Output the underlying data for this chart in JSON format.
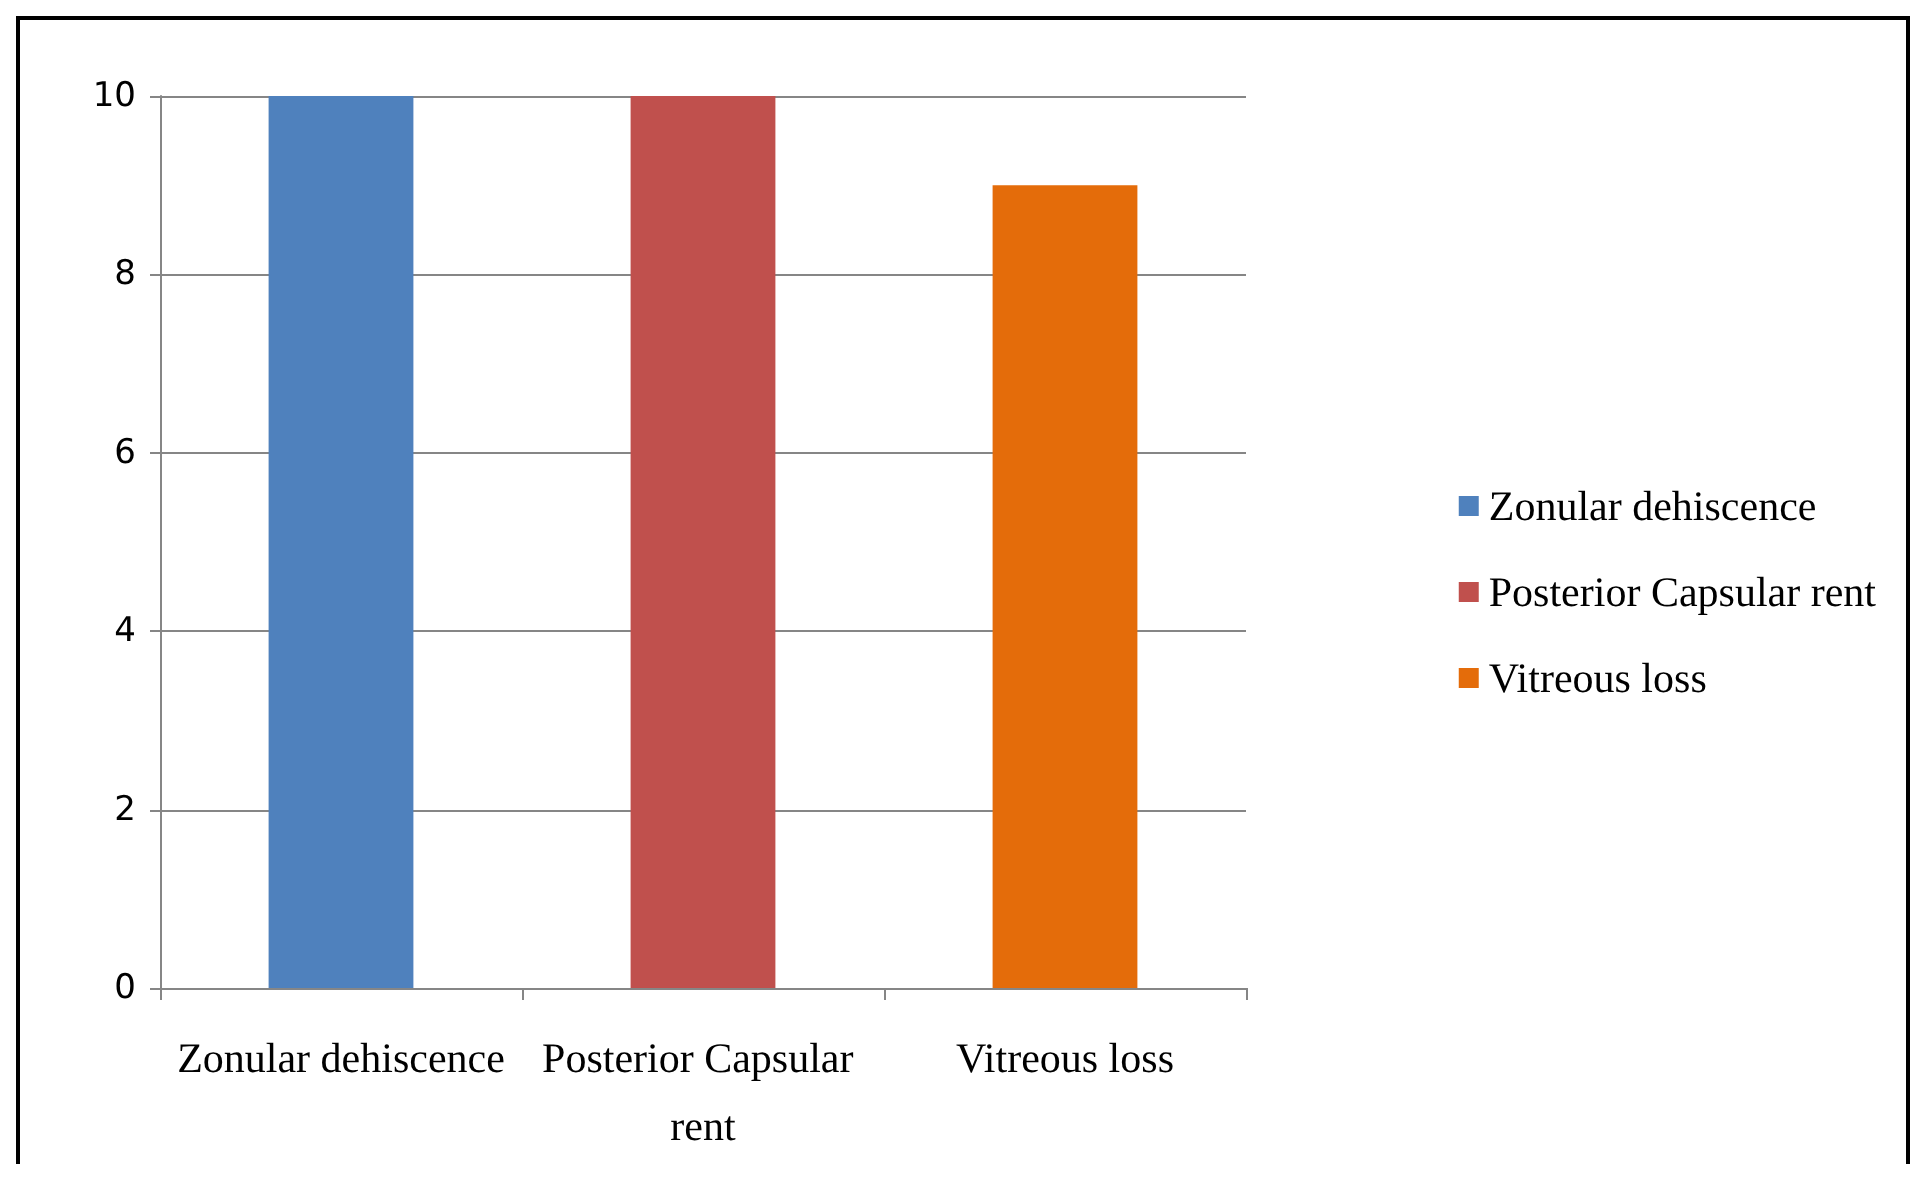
{
  "chart_data": {
    "type": "bar",
    "categories": [
      "Zonular dehiscence",
      "Posterior Capsular rent",
      "Vitreous loss"
    ],
    "series": [
      {
        "name": "Zonular dehiscence",
        "color": "#4f81bd",
        "values": [
          10,
          null,
          null
        ]
      },
      {
        "name": "Posterior Capsular rent",
        "color": "#c0504d",
        "values": [
          null,
          10,
          null
        ]
      },
      {
        "name": "Vitreous loss",
        "color": "#e46c0a",
        "values": [
          null,
          null,
          9
        ]
      }
    ],
    "ylim": [
      0,
      10
    ],
    "yticks": [
      0,
      2,
      4,
      6,
      8,
      10
    ],
    "grid": "y",
    "legend": "right"
  }
}
